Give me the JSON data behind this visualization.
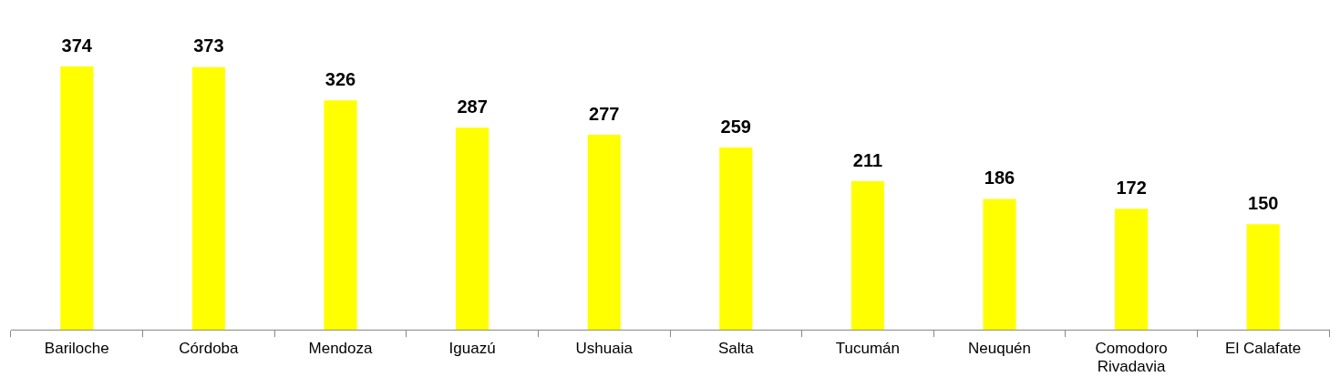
{
  "chart_data": {
    "type": "bar",
    "categories": [
      "Bariloche",
      "Córdoba",
      "Mendoza",
      "Iguazú",
      "Ushuaia",
      "Salta",
      "Tucumán",
      "Neuquén",
      "Comodoro Rivadavia",
      "El Calafate"
    ],
    "values": [
      374,
      373,
      326,
      287,
      277,
      259,
      211,
      186,
      172,
      150
    ],
    "color": "#ffff00",
    "data_labels": true,
    "grid": false,
    "legend": false
  }
}
